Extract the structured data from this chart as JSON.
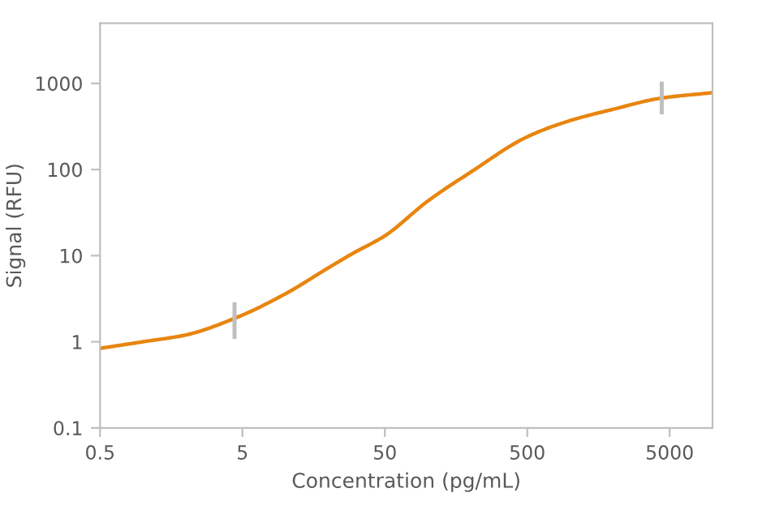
{
  "chart_data": {
    "type": "line",
    "xlabel": "Concentration (pg/mL)",
    "ylabel": "Signal (RFU)",
    "log": "xy",
    "xlim": [
      0.5,
      10000
    ],
    "ylim": [
      0.1,
      5000
    ],
    "xticks": [
      0.5,
      5,
      50,
      500,
      5000
    ],
    "yticks": [
      0.1,
      1,
      10,
      100,
      1000
    ],
    "grid": false,
    "legend": false,
    "marker": "none",
    "line_style": "solid",
    "series": [
      {
        "color": "#e8850f",
        "x": [
          0.5,
          1,
          2,
          4.4,
          10,
          20,
          30,
          50,
          100,
          200,
          500,
          1000,
          2000,
          4400,
          10000
        ],
        "values": [
          0.84,
          1.0,
          1.2,
          1.87,
          3.6,
          7.2,
          10.7,
          17,
          43,
          93,
          240,
          370,
          500,
          676,
          780
        ],
        "errors": [
          null,
          null,
          null,
          [
            1.08,
            2.88
          ],
          null,
          null,
          null,
          null,
          null,
          null,
          null,
          null,
          null,
          [
            437,
            1045
          ],
          null
        ]
      }
    ]
  }
}
